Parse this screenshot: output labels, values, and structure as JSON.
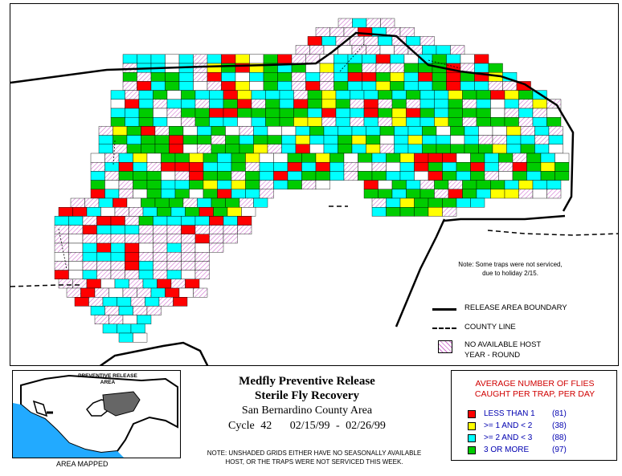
{
  "map": {
    "note_line1": "Note: Some traps were not serviced,",
    "note_line2": "due to holiday 2/15.",
    "legend": {
      "boundary": "RELEASE AREA BOUNDARY",
      "county": "COUNTY LINE",
      "no_host_1": "NO AVAILABLE HOST",
      "no_host_2": "YEAR - ROUND"
    },
    "colors": {
      "red": "#ff0000",
      "yellow": "#ffff00",
      "cyan": "#00ffff",
      "green": "#00cc00",
      "white": "#ffffff",
      "hatch": "#d070d0"
    }
  },
  "inset": {
    "label_line1": "PREVENTIVE RELEASE",
    "label_line2": "AREA",
    "caption": "AREA MAPPED"
  },
  "title": {
    "line1": "Medfly Preventive Release",
    "line2": "Sterile Fly Recovery",
    "line3": "San Bernardino County Area",
    "cycle": "Cycle 42",
    "dates": "02/15/99 - 02/26/99"
  },
  "footnote": {
    "line1": "NOTE: UNSHADED GRIDS EITHER HAVE NO SEASONALLY AVAILABLE",
    "line2": "HOST, OR THE TRAPS WERE NOT SERVICED THIS WEEK."
  },
  "legend": {
    "title_line1": "AVERAGE NUMBER OF FLIES",
    "title_line2": "CAUGHT PER TRAP, PER DAY",
    "items": [
      {
        "label": "LESS THAN 1",
        "count": "(81)",
        "color": "#ff0000"
      },
      {
        "label": ">= 1 AND < 2",
        "count": "(38)",
        "color": "#ffff00"
      },
      {
        "label": ">= 2 AND < 3",
        "count": "(88)",
        "color": "#00ffff"
      },
      {
        "label": "3 OR MORE",
        "count": "(97)",
        "color": "#00cc00"
      }
    ]
  }
}
